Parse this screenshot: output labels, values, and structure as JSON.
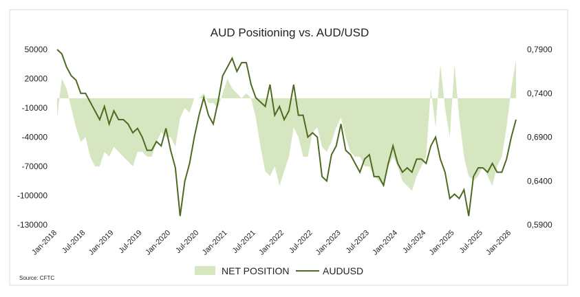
{
  "chart_data": {
    "type": "area-line",
    "title": "AUD Positioning vs. AUD/USD",
    "source": "Source: CFTC",
    "categories": [
      "Jan-2018",
      null,
      null,
      null,
      null,
      null,
      "Jul-2018",
      null,
      null,
      null,
      null,
      null,
      "Jan-2019",
      null,
      null,
      null,
      null,
      null,
      "Jul-2019",
      null,
      null,
      null,
      null,
      null,
      "Jan-2020",
      null,
      null,
      null,
      null,
      null,
      "Jul-2020",
      null,
      null,
      null,
      null,
      null,
      "Jan-2021",
      null,
      null,
      null,
      null,
      null,
      "Jul-2021",
      null,
      null,
      null,
      null,
      null,
      "Jan-2022",
      null,
      null,
      null,
      null,
      null,
      "Jul-2022",
      null,
      null,
      null,
      null,
      null,
      "Jan-2023",
      null,
      null,
      null,
      null,
      null,
      "Jul-2023",
      null,
      null,
      null,
      null,
      null,
      "Jan-2024",
      null,
      null,
      null,
      null,
      null,
      "Jul-2024",
      null,
      null,
      null,
      null,
      null,
      "Jan-2025",
      null,
      null,
      null,
      null,
      null,
      "Jul-2025",
      null,
      null,
      null,
      null,
      null,
      "Jan-2026",
      null
    ],
    "series": [
      {
        "name": "NET POSITION",
        "type": "area",
        "color": "#d6e6c1",
        "values": [
          -20000,
          20000,
          10000,
          -10000,
          -30000,
          -45000,
          -40000,
          -60000,
          -70000,
          -70000,
          -55000,
          -60000,
          -50000,
          -55000,
          -60000,
          -65000,
          -70000,
          -55000,
          -55000,
          -60000,
          -60000,
          -45000,
          -35000,
          -40000,
          -40000,
          -50000,
          -20000,
          -10000,
          -15000,
          0,
          0,
          5000,
          -5000,
          -5000,
          -10000,
          5000,
          20000,
          10000,
          5000,
          0,
          5000,
          0,
          -20000,
          -50000,
          -75000,
          -80000,
          -70000,
          -90000,
          -75000,
          -60000,
          -30000,
          -40000,
          -60000,
          -60000,
          -35000,
          -30000,
          -50000,
          -55000,
          -45000,
          -30000,
          -20000,
          -40000,
          -55000,
          -60000,
          -60000,
          -70000,
          -70000,
          -80000,
          -85000,
          -90000,
          -70000,
          -60000,
          -70000,
          -85000,
          -90000,
          -95000,
          -80000,
          -70000,
          -60000,
          10000,
          -30000,
          35000,
          -10000,
          -40000,
          35000,
          -20000,
          -60000,
          -80000,
          -85000,
          -80000,
          -70000,
          -80000,
          -90000,
          -70000,
          -60000,
          -30000,
          10000,
          40000
        ]
      },
      {
        "name": "AUDUSD",
        "type": "line",
        "axis": "y2",
        "color": "#4d6a1f",
        "values": [
          0.79,
          0.785,
          0.77,
          0.76,
          0.755,
          0.74,
          0.74,
          0.73,
          0.72,
          0.71,
          0.725,
          0.705,
          0.72,
          0.71,
          0.71,
          0.705,
          0.695,
          0.7,
          0.69,
          0.675,
          0.675,
          0.685,
          0.68,
          0.7,
          0.675,
          0.655,
          0.6,
          0.64,
          0.66,
          0.69,
          0.715,
          0.735,
          0.715,
          0.705,
          0.73,
          0.76,
          0.77,
          0.78,
          0.765,
          0.775,
          0.775,
          0.75,
          0.735,
          0.73,
          0.725,
          0.75,
          0.715,
          0.725,
          0.71,
          0.72,
          0.75,
          0.715,
          0.715,
          0.69,
          0.695,
          0.69,
          0.645,
          0.64,
          0.67,
          0.68,
          0.705,
          0.675,
          0.67,
          0.66,
          0.65,
          0.665,
          0.67,
          0.645,
          0.645,
          0.635,
          0.66,
          0.68,
          0.66,
          0.65,
          0.655,
          0.65,
          0.665,
          0.665,
          0.66,
          0.68,
          0.69,
          0.665,
          0.65,
          0.62,
          0.625,
          0.62,
          0.63,
          0.6,
          0.645,
          0.655,
          0.655,
          0.65,
          0.66,
          0.65,
          0.65,
          0.665,
          0.69,
          0.71
        ]
      }
    ],
    "ylim": [
      -130000,
      50000
    ],
    "yticks": [
      50000,
      20000,
      -10000,
      -40000,
      -70000,
      -100000,
      -130000
    ],
    "y2lim": [
      0.59,
      0.79
    ],
    "y2ticks": [
      {
        "value": 0.79,
        "label": "0,7900"
      },
      {
        "value": 0.74,
        "label": "0,7400"
      },
      {
        "value": 0.69,
        "label": "0,6900"
      },
      {
        "value": 0.64,
        "label": "0,6400"
      },
      {
        "value": 0.59,
        "label": "0,5900"
      }
    ],
    "legend": "bottom"
  }
}
